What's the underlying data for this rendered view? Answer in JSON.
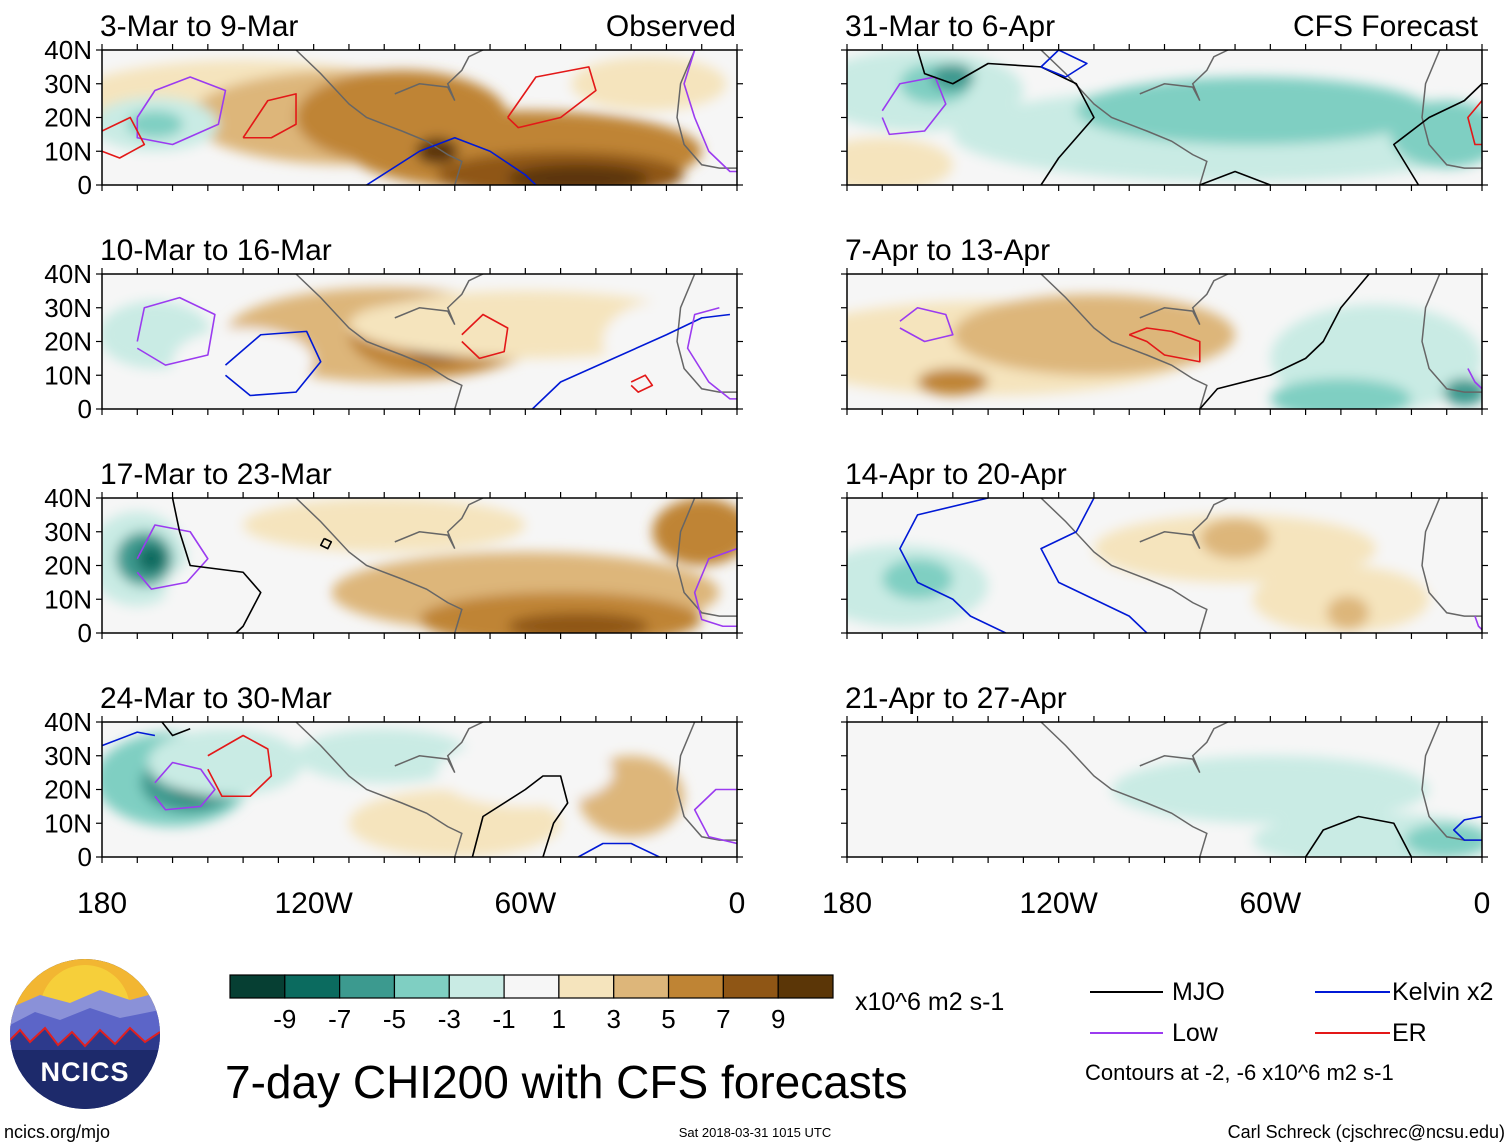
{
  "chart_data": {
    "type": "heatmap",
    "title": "7-day CHI200 with CFS forecasts",
    "variable": "CHI200",
    "units": "x10^6 m2 s-1",
    "column_titles": [
      "Observed",
      "CFS Forecast"
    ],
    "lon_ticks": [
      "180",
      "120W",
      "60W",
      "0"
    ],
    "lon_values": [
      180,
      120,
      60,
      0
    ],
    "lat_ticks": [
      "40N",
      "30N",
      "20N",
      "10N",
      "0"
    ],
    "lat_values": [
      40,
      30,
      20,
      10,
      0
    ],
    "xlim_lon_west": [
      180,
      0
    ],
    "ylim_lat": [
      0,
      40
    ],
    "colorbar": {
      "levels": [
        -9,
        -7,
        -5,
        -3,
        -1,
        1,
        3,
        5,
        7,
        9
      ],
      "labels": [
        "-9",
        "-7",
        "-5",
        "-3",
        "-1",
        "1",
        "3",
        "5",
        "7",
        "9"
      ],
      "colors": [
        "#063f33",
        "#0b6b5f",
        "#3c9a8f",
        "#7fcfc2",
        "#c9ebe4",
        "#f6f6f6",
        "#f5e4bd",
        "#ddb67a",
        "#bf8434",
        "#8f5615",
        "#5b3607"
      ]
    },
    "contour_legend": [
      {
        "label": "MJO",
        "color": "#000000"
      },
      {
        "label": "Kelvin x2",
        "color": "#0019d6"
      },
      {
        "label": "Low",
        "color": "#9b3bf0"
      },
      {
        "label": "ER",
        "color": "#e31818"
      }
    ],
    "contour_note": "Contours at -2, -6 x10^6 m2 s-1",
    "panels": [
      {
        "period": "3-Mar to 9-Mar",
        "source": "Observed",
        "column": 0,
        "row": 0
      },
      {
        "period": "10-Mar to 16-Mar",
        "source": "Observed",
        "column": 0,
        "row": 1
      },
      {
        "period": "17-Mar to 23-Mar",
        "source": "Observed",
        "column": 0,
        "row": 2
      },
      {
        "period": "24-Mar to 30-Mar",
        "source": "Observed",
        "column": 0,
        "row": 3
      },
      {
        "period": "31-Mar to 6-Apr",
        "source": "CFS Forecast",
        "column": 1,
        "row": 0
      },
      {
        "period": "7-Apr to 13-Apr",
        "source": "CFS Forecast",
        "column": 1,
        "row": 1
      },
      {
        "period": "14-Apr to 20-Apr",
        "source": "CFS Forecast",
        "column": 1,
        "row": 2
      },
      {
        "period": "21-Apr to 27-Apr",
        "source": "CFS Forecast",
        "column": 1,
        "row": 3
      }
    ]
  },
  "logo": {
    "text": "NCICS"
  },
  "footer": {
    "left": "ncics.org/mjo",
    "center": "Sat 2018-03-31 1015 UTC",
    "right": "Carl Schreck (cjschrec@ncsu.edu)"
  }
}
